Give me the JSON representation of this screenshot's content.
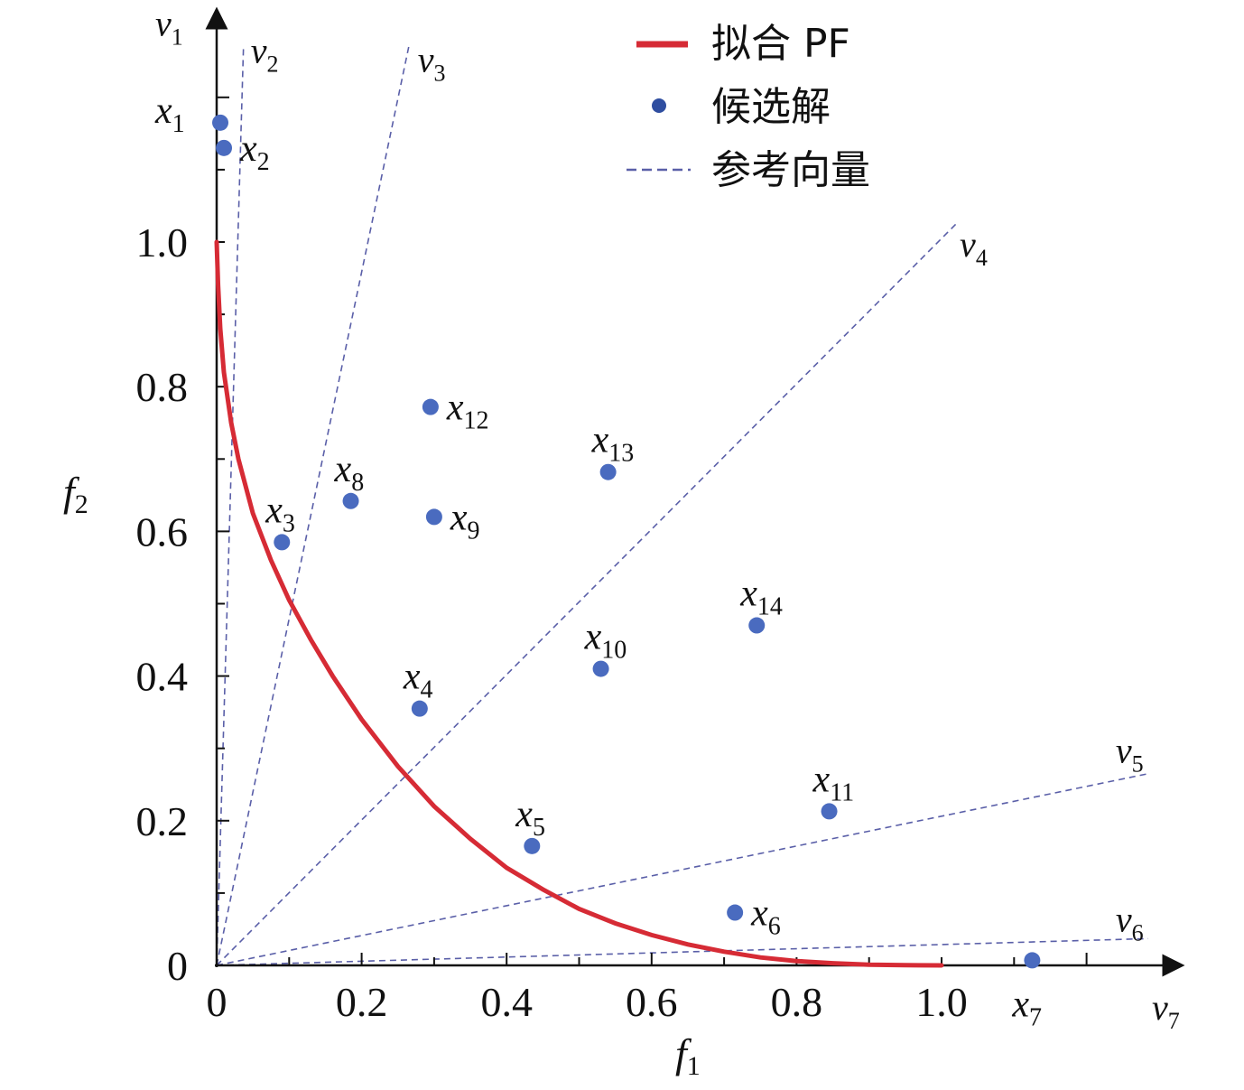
{
  "chart_data": {
    "type": "scatter",
    "title": "",
    "xlabel": {
      "base": "f",
      "sub": "1"
    },
    "ylabel": {
      "base": "f",
      "sub": "2"
    },
    "x_ticks": [
      {
        "value": 0,
        "label": "0"
      },
      {
        "value": 0.2,
        "label": "0.2"
      },
      {
        "value": 0.4,
        "label": "0.4"
      },
      {
        "value": 0.6,
        "label": "0.6"
      },
      {
        "value": 0.8,
        "label": "0.8"
      },
      {
        "value": 1.0,
        "label": "1.0"
      }
    ],
    "y_ticks": [
      {
        "value": 0,
        "label": "0"
      },
      {
        "value": 0.2,
        "label": "0.2"
      },
      {
        "value": 0.4,
        "label": "0.4"
      },
      {
        "value": 0.6,
        "label": "0.6"
      },
      {
        "value": 0.8,
        "label": "0.8"
      },
      {
        "value": 1.0,
        "label": "1.0"
      }
    ],
    "xlim": [
      0,
      1.33
    ],
    "ylim": [
      0,
      1.31
    ],
    "grid": false,
    "legend_position": "top-right",
    "legend": [
      {
        "label": "拟合 PF",
        "kind": "line",
        "color": "#d62b35"
      },
      {
        "label": "候选解",
        "kind": "marker",
        "color": "#3f5fb0"
      },
      {
        "label": "参考向量",
        "kind": "dashed",
        "color": "#5a5fa8"
      }
    ],
    "colors": {
      "pf": "#d62b35",
      "points": "#4a6bbf",
      "vectors": "#5a5fa8",
      "axis": "#111111"
    },
    "fitted_pf": {
      "points": [
        [
          0,
          1.0
        ],
        [
          0.002,
          0.94
        ],
        [
          0.005,
          0.88
        ],
        [
          0.01,
          0.82
        ],
        [
          0.02,
          0.75
        ],
        [
          0.03,
          0.7
        ],
        [
          0.05,
          0.625
        ],
        [
          0.075,
          0.56
        ],
        [
          0.1,
          0.505
        ],
        [
          0.13,
          0.45
        ],
        [
          0.16,
          0.4
        ],
        [
          0.2,
          0.34
        ],
        [
          0.25,
          0.275
        ],
        [
          0.3,
          0.22
        ],
        [
          0.35,
          0.175
        ],
        [
          0.4,
          0.135
        ],
        [
          0.45,
          0.105
        ],
        [
          0.5,
          0.078
        ],
        [
          0.55,
          0.058
        ],
        [
          0.6,
          0.042
        ],
        [
          0.65,
          0.029
        ],
        [
          0.7,
          0.019
        ],
        [
          0.75,
          0.011
        ],
        [
          0.8,
          0.006
        ],
        [
          0.85,
          0.003
        ],
        [
          0.9,
          0.001
        ],
        [
          0.95,
          0.0003
        ],
        [
          1.0,
          0
        ]
      ]
    },
    "candidates": [
      {
        "label": "x",
        "sub": "1",
        "x": 0.005,
        "y": 1.165,
        "label_pos": "left"
      },
      {
        "label": "x",
        "sub": "2",
        "x": 0.01,
        "y": 1.13,
        "label_pos": "right"
      },
      {
        "label": "x",
        "sub": "3",
        "x": 0.09,
        "y": 0.585,
        "label_pos": "above"
      },
      {
        "label": "x",
        "sub": "4",
        "x": 0.28,
        "y": 0.355,
        "label_pos": "above"
      },
      {
        "label": "x",
        "sub": "5",
        "x": 0.435,
        "y": 0.165,
        "label_pos": "above"
      },
      {
        "label": "x",
        "sub": "6",
        "x": 0.715,
        "y": 0.073,
        "label_pos": "right"
      },
      {
        "label": "x",
        "sub": "7",
        "x": 1.125,
        "y": 0.007,
        "label_pos": "below"
      },
      {
        "label": "x",
        "sub": "8",
        "x": 0.185,
        "y": 0.642,
        "label_pos": "above"
      },
      {
        "label": "x",
        "sub": "9",
        "x": 0.3,
        "y": 0.62,
        "label_pos": "right"
      },
      {
        "label": "x",
        "sub": "10",
        "x": 0.53,
        "y": 0.41,
        "label_pos": "above"
      },
      {
        "label": "x",
        "sub": "11",
        "x": 0.845,
        "y": 0.213,
        "label_pos": "above"
      },
      {
        "label": "x",
        "sub": "12",
        "x": 0.295,
        "y": 0.772,
        "label_pos": "right"
      },
      {
        "label": "x",
        "sub": "13",
        "x": 0.54,
        "y": 0.682,
        "label_pos": "above"
      },
      {
        "label": "x",
        "sub": "14",
        "x": 0.745,
        "y": 0.47,
        "label_pos": "above"
      }
    ],
    "reference_vectors": [
      {
        "label": "v",
        "sub": "1",
        "end": [
          0,
          1.31
        ],
        "dashed": false
      },
      {
        "label": "v",
        "sub": "2",
        "end": [
          0.037,
          1.27
        ],
        "dashed": true
      },
      {
        "label": "v",
        "sub": "3",
        "end": [
          0.265,
          1.27
        ],
        "dashed": true
      },
      {
        "label": "v",
        "sub": "4",
        "end": [
          1.02,
          1.025
        ],
        "dashed": true
      },
      {
        "label": "v",
        "sub": "5",
        "end": [
          1.285,
          0.265
        ],
        "dashed": true
      },
      {
        "label": "v",
        "sub": "6",
        "end": [
          1.285,
          0.037
        ],
        "dashed": true
      },
      {
        "label": "v",
        "sub": "7",
        "end": [
          1.33,
          0
        ],
        "dashed": false
      }
    ]
  }
}
